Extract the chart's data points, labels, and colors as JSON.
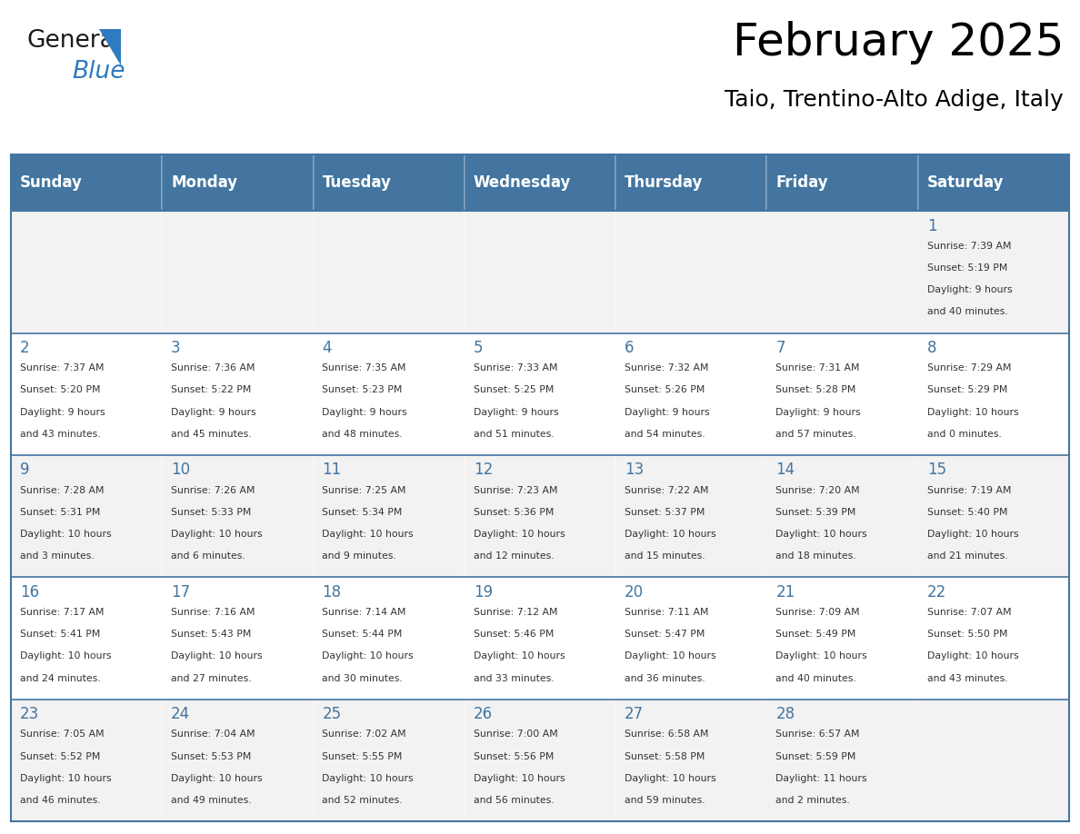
{
  "title": "February 2025",
  "subtitle": "Taio, Trentino-Alto Adige, Italy",
  "days_of_week": [
    "Sunday",
    "Monday",
    "Tuesday",
    "Wednesday",
    "Thursday",
    "Friday",
    "Saturday"
  ],
  "header_bg": "#4375a0",
  "header_text": "#ffffff",
  "cell_bg_odd": "#f2f2f2",
  "cell_bg_even": "#ffffff",
  "day_number_color": "#4375a0",
  "info_text_color": "#333333",
  "border_color": "#4375a0",
  "logo_general_color": "#1a1a1a",
  "logo_blue_color": "#2e7bbf",
  "title_fontsize": 36,
  "subtitle_fontsize": 18,
  "header_fontsize": 12,
  "day_num_fontsize": 12,
  "info_fontsize": 7.8,
  "calendar_data": [
    [
      null,
      null,
      null,
      null,
      null,
      null,
      {
        "day": 1,
        "sunrise": "7:39 AM",
        "sunset": "5:19 PM",
        "daylight_line1": "Daylight: 9 hours",
        "daylight_line2": "and 40 minutes."
      }
    ],
    [
      {
        "day": 2,
        "sunrise": "7:37 AM",
        "sunset": "5:20 PM",
        "daylight_line1": "Daylight: 9 hours",
        "daylight_line2": "and 43 minutes."
      },
      {
        "day": 3,
        "sunrise": "7:36 AM",
        "sunset": "5:22 PM",
        "daylight_line1": "Daylight: 9 hours",
        "daylight_line2": "and 45 minutes."
      },
      {
        "day": 4,
        "sunrise": "7:35 AM",
        "sunset": "5:23 PM",
        "daylight_line1": "Daylight: 9 hours",
        "daylight_line2": "and 48 minutes."
      },
      {
        "day": 5,
        "sunrise": "7:33 AM",
        "sunset": "5:25 PM",
        "daylight_line1": "Daylight: 9 hours",
        "daylight_line2": "and 51 minutes."
      },
      {
        "day": 6,
        "sunrise": "7:32 AM",
        "sunset": "5:26 PM",
        "daylight_line1": "Daylight: 9 hours",
        "daylight_line2": "and 54 minutes."
      },
      {
        "day": 7,
        "sunrise": "7:31 AM",
        "sunset": "5:28 PM",
        "daylight_line1": "Daylight: 9 hours",
        "daylight_line2": "and 57 minutes."
      },
      {
        "day": 8,
        "sunrise": "7:29 AM",
        "sunset": "5:29 PM",
        "daylight_line1": "Daylight: 10 hours",
        "daylight_line2": "and 0 minutes."
      }
    ],
    [
      {
        "day": 9,
        "sunrise": "7:28 AM",
        "sunset": "5:31 PM",
        "daylight_line1": "Daylight: 10 hours",
        "daylight_line2": "and 3 minutes."
      },
      {
        "day": 10,
        "sunrise": "7:26 AM",
        "sunset": "5:33 PM",
        "daylight_line1": "Daylight: 10 hours",
        "daylight_line2": "and 6 minutes."
      },
      {
        "day": 11,
        "sunrise": "7:25 AM",
        "sunset": "5:34 PM",
        "daylight_line1": "Daylight: 10 hours",
        "daylight_line2": "and 9 minutes."
      },
      {
        "day": 12,
        "sunrise": "7:23 AM",
        "sunset": "5:36 PM",
        "daylight_line1": "Daylight: 10 hours",
        "daylight_line2": "and 12 minutes."
      },
      {
        "day": 13,
        "sunrise": "7:22 AM",
        "sunset": "5:37 PM",
        "daylight_line1": "Daylight: 10 hours",
        "daylight_line2": "and 15 minutes."
      },
      {
        "day": 14,
        "sunrise": "7:20 AM",
        "sunset": "5:39 PM",
        "daylight_line1": "Daylight: 10 hours",
        "daylight_line2": "and 18 minutes."
      },
      {
        "day": 15,
        "sunrise": "7:19 AM",
        "sunset": "5:40 PM",
        "daylight_line1": "Daylight: 10 hours",
        "daylight_line2": "and 21 minutes."
      }
    ],
    [
      {
        "day": 16,
        "sunrise": "7:17 AM",
        "sunset": "5:41 PM",
        "daylight_line1": "Daylight: 10 hours",
        "daylight_line2": "and 24 minutes."
      },
      {
        "day": 17,
        "sunrise": "7:16 AM",
        "sunset": "5:43 PM",
        "daylight_line1": "Daylight: 10 hours",
        "daylight_line2": "and 27 minutes."
      },
      {
        "day": 18,
        "sunrise": "7:14 AM",
        "sunset": "5:44 PM",
        "daylight_line1": "Daylight: 10 hours",
        "daylight_line2": "and 30 minutes."
      },
      {
        "day": 19,
        "sunrise": "7:12 AM",
        "sunset": "5:46 PM",
        "daylight_line1": "Daylight: 10 hours",
        "daylight_line2": "and 33 minutes."
      },
      {
        "day": 20,
        "sunrise": "7:11 AM",
        "sunset": "5:47 PM",
        "daylight_line1": "Daylight: 10 hours",
        "daylight_line2": "and 36 minutes."
      },
      {
        "day": 21,
        "sunrise": "7:09 AM",
        "sunset": "5:49 PM",
        "daylight_line1": "Daylight: 10 hours",
        "daylight_line2": "and 40 minutes."
      },
      {
        "day": 22,
        "sunrise": "7:07 AM",
        "sunset": "5:50 PM",
        "daylight_line1": "Daylight: 10 hours",
        "daylight_line2": "and 43 minutes."
      }
    ],
    [
      {
        "day": 23,
        "sunrise": "7:05 AM",
        "sunset": "5:52 PM",
        "daylight_line1": "Daylight: 10 hours",
        "daylight_line2": "and 46 minutes."
      },
      {
        "day": 24,
        "sunrise": "7:04 AM",
        "sunset": "5:53 PM",
        "daylight_line1": "Daylight: 10 hours",
        "daylight_line2": "and 49 minutes."
      },
      {
        "day": 25,
        "sunrise": "7:02 AM",
        "sunset": "5:55 PM",
        "daylight_line1": "Daylight: 10 hours",
        "daylight_line2": "and 52 minutes."
      },
      {
        "day": 26,
        "sunrise": "7:00 AM",
        "sunset": "5:56 PM",
        "daylight_line1": "Daylight: 10 hours",
        "daylight_line2": "and 56 minutes."
      },
      {
        "day": 27,
        "sunrise": "6:58 AM",
        "sunset": "5:58 PM",
        "daylight_line1": "Daylight: 10 hours",
        "daylight_line2": "and 59 minutes."
      },
      {
        "day": 28,
        "sunrise": "6:57 AM",
        "sunset": "5:59 PM",
        "daylight_line1": "Daylight: 11 hours",
        "daylight_line2": "and 2 minutes."
      },
      null
    ]
  ]
}
